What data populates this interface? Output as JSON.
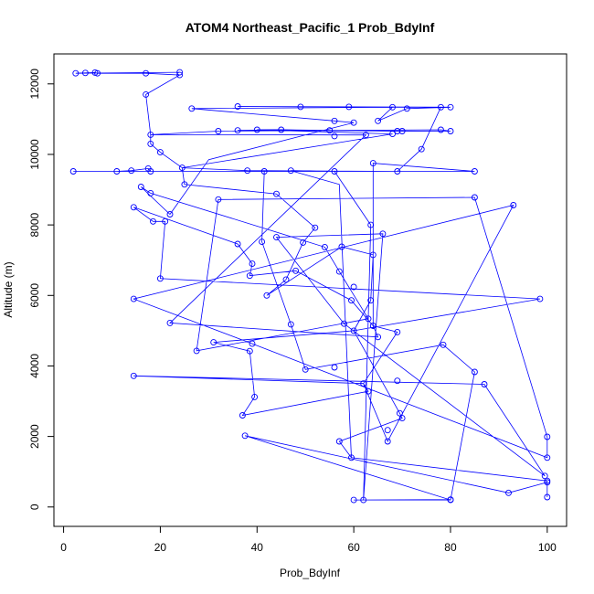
{
  "chart_data": {
    "type": "line",
    "title": "ATOM4 Northeast_Pacific_1 Prob_BdyInf",
    "xlabel": "Prob_BdyInf",
    "ylabel": "Altitude (m)",
    "xlim": [
      -2,
      104
    ],
    "ylim": [
      -550,
      12850
    ],
    "xticks": [
      "0",
      "20",
      "40",
      "60",
      "80",
      "100"
    ],
    "yticks": [
      "0",
      "2000",
      "4000",
      "6000",
      "8000",
      "10000",
      "12000"
    ],
    "series_color": "#0000ff",
    "points": [
      [
        24,
        12330
      ],
      [
        2.5,
        12300
      ],
      [
        4.5,
        12310
      ],
      [
        6.5,
        12320
      ],
      [
        7,
        12300
      ],
      [
        17,
        12300
      ],
      [
        24,
        12250
      ],
      [
        17,
        11700
      ],
      [
        26.5,
        11300
      ],
      [
        56,
        10950
      ],
      [
        60,
        10900
      ],
      [
        68,
        11340
      ],
      [
        65,
        10950
      ],
      [
        71,
        11300
      ],
      [
        80,
        11340
      ],
      [
        36,
        11360
      ],
      [
        49,
        11350
      ],
      [
        59,
        11350
      ],
      [
        78,
        11340
      ],
      [
        18,
        10560
      ],
      [
        68,
        10580
      ],
      [
        62.5,
        10550
      ],
      [
        32,
        10660
      ],
      [
        40,
        10700
      ],
      [
        36,
        10680
      ],
      [
        45,
        10700
      ],
      [
        55,
        10680
      ],
      [
        69,
        10660
      ],
      [
        70,
        10660
      ],
      [
        78,
        10700
      ],
      [
        80,
        10660
      ],
      [
        18,
        10300
      ],
      [
        20,
        10060
      ],
      [
        74,
        10150
      ],
      [
        56,
        10520
      ],
      [
        24.5,
        9620
      ],
      [
        25,
        9150
      ],
      [
        38,
        9540
      ],
      [
        64,
        9750
      ],
      [
        69,
        9520
      ],
      [
        85,
        9520
      ],
      [
        2,
        9520
      ],
      [
        11,
        9520
      ],
      [
        14,
        9540
      ],
      [
        17.5,
        9600
      ],
      [
        18,
        9520
      ],
      [
        41.5,
        9520
      ],
      [
        47,
        9540
      ],
      [
        56,
        9520
      ],
      [
        16,
        9080
      ],
      [
        18,
        8900
      ],
      [
        32,
        8720
      ],
      [
        44,
        8880
      ],
      [
        85,
        8780
      ],
      [
        93,
        8560
      ],
      [
        14.5,
        8500
      ],
      [
        18.5,
        8100
      ],
      [
        22,
        8300
      ],
      [
        21,
        8100
      ],
      [
        63.5,
        8000
      ],
      [
        66,
        7750
      ],
      [
        36,
        7460
      ],
      [
        41,
        7520
      ],
      [
        44,
        7650
      ],
      [
        49.5,
        7500
      ],
      [
        52,
        7920
      ],
      [
        57.5,
        7380
      ],
      [
        54,
        7370
      ],
      [
        64,
        7150
      ],
      [
        39,
        6900
      ],
      [
        38.5,
        6560
      ],
      [
        48,
        6700
      ],
      [
        46,
        6450
      ],
      [
        57,
        6680
      ],
      [
        20,
        6480
      ],
      [
        14.5,
        5900
      ],
      [
        98.5,
        5900
      ],
      [
        42,
        6000
      ],
      [
        60,
        6240
      ],
      [
        63.5,
        5860
      ],
      [
        59.5,
        5860
      ],
      [
        22,
        5220
      ],
      [
        47,
        5180
      ],
      [
        58,
        5200
      ],
      [
        63,
        5340
      ],
      [
        64,
        5140
      ],
      [
        65,
        4820
      ],
      [
        69,
        4960
      ],
      [
        31,
        4670
      ],
      [
        27.5,
        4430
      ],
      [
        39,
        4630
      ],
      [
        78.5,
        4600
      ],
      [
        60,
        5000
      ],
      [
        38.5,
        4420
      ],
      [
        14.5,
        3720
      ],
      [
        50,
        3900
      ],
      [
        56,
        3960
      ],
      [
        62,
        3500
      ],
      [
        85,
        3830
      ],
      [
        87,
        3480
      ],
      [
        69,
        3580
      ],
      [
        63,
        3280
      ],
      [
        39.5,
        3120
      ],
      [
        37,
        2600
      ],
      [
        37.5,
        2020
      ],
      [
        69.5,
        2660
      ],
      [
        70,
        2520
      ],
      [
        67,
        2180
      ],
      [
        57,
        1860
      ],
      [
        59.5,
        1400
      ],
      [
        67,
        1860
      ],
      [
        100,
        1990
      ],
      [
        100,
        1400
      ],
      [
        99.5,
        880
      ],
      [
        92,
        400
      ],
      [
        100,
        740
      ],
      [
        60,
        200
      ],
      [
        62,
        200
      ],
      [
        80,
        200
      ],
      [
        80,
        210
      ],
      [
        100,
        700
      ],
      [
        100,
        280
      ]
    ],
    "path": [
      [
        24,
        12330
      ],
      [
        2.5,
        12300
      ],
      [
        4.5,
        12310
      ],
      [
        6.5,
        12320
      ],
      [
        7,
        12300
      ],
      [
        17,
        12300
      ],
      [
        24,
        12250
      ],
      [
        17,
        11700
      ],
      [
        18,
        10560
      ],
      [
        18,
        10300
      ],
      [
        20,
        10060
      ],
      [
        24.5,
        9620
      ],
      [
        25,
        9150
      ],
      [
        44,
        8880
      ],
      [
        52,
        7920
      ],
      [
        49.5,
        7500
      ],
      [
        46,
        6450
      ],
      [
        42,
        6000
      ],
      [
        57.5,
        7380
      ],
      [
        64,
        7150
      ],
      [
        63.5,
        5860
      ],
      [
        60,
        5000
      ],
      [
        98.5,
        5900
      ],
      [
        20,
        6480
      ],
      [
        21,
        8100
      ],
      [
        18.5,
        8100
      ],
      [
        14.5,
        8500
      ],
      [
        36,
        7460
      ],
      [
        39,
        6900
      ],
      [
        38.5,
        6560
      ],
      [
        48,
        6700
      ],
      [
        59.5,
        5860
      ],
      [
        64,
        5140
      ],
      [
        69,
        4960
      ],
      [
        62,
        3500
      ],
      [
        63,
        3280
      ],
      [
        37,
        2600
      ],
      [
        39.5,
        3120
      ],
      [
        38.5,
        4420
      ],
      [
        31,
        4670
      ],
      [
        60,
        5000
      ],
      [
        69.5,
        2660
      ],
      [
        70,
        2520
      ],
      [
        57,
        1860
      ],
      [
        59.5,
        1400
      ],
      [
        100,
        740
      ],
      [
        100,
        700
      ],
      [
        100,
        280
      ],
      [
        100,
        700
      ],
      [
        92,
        400
      ],
      [
        37.5,
        2020
      ],
      [
        80,
        200
      ],
      [
        80,
        210
      ],
      [
        60,
        200
      ],
      [
        62,
        200
      ],
      [
        80,
        200
      ],
      [
        85,
        3830
      ],
      [
        78.5,
        4600
      ],
      [
        50,
        3900
      ],
      [
        47,
        5180
      ],
      [
        41,
        7520
      ],
      [
        41.5,
        9520
      ],
      [
        2,
        9520
      ],
      [
        11,
        9520
      ],
      [
        14,
        9540
      ],
      [
        17.5,
        9600
      ],
      [
        18,
        9520
      ],
      [
        85,
        9520
      ],
      [
        64,
        9750
      ],
      [
        64,
        5140
      ],
      [
        65,
        4820
      ],
      [
        22,
        5220
      ],
      [
        62.5,
        10550
      ],
      [
        18,
        10560
      ],
      [
        32,
        10660
      ],
      [
        78,
        10700
      ],
      [
        80,
        10660
      ],
      [
        36,
        10680
      ],
      [
        45,
        10700
      ],
      [
        55,
        10680
      ],
      [
        69,
        10660
      ],
      [
        70,
        10660
      ],
      [
        40,
        10700
      ],
      [
        68,
        10580
      ],
      [
        24.5,
        9620
      ],
      [
        38,
        9540
      ],
      [
        69,
        9520
      ],
      [
        74,
        10150
      ],
      [
        78,
        11340
      ],
      [
        36,
        11360
      ],
      [
        49,
        11350
      ],
      [
        59,
        11350
      ],
      [
        80,
        11340
      ],
      [
        71,
        11300
      ],
      [
        65,
        10950
      ],
      [
        68,
        11340
      ],
      [
        26.5,
        11300
      ],
      [
        56,
        10950
      ],
      [
        60,
        10900
      ],
      [
        30,
        9850
      ],
      [
        22,
        8300
      ],
      [
        16,
        9080
      ],
      [
        18,
        8900
      ],
      [
        54,
        7370
      ],
      [
        57,
        6680
      ],
      [
        63,
        5340
      ],
      [
        27.5,
        4430
      ],
      [
        32,
        8720
      ],
      [
        85,
        8780
      ],
      [
        100,
        1990
      ],
      [
        100,
        1400
      ],
      [
        39,
        4630
      ],
      [
        14.5,
        5900
      ],
      [
        93,
        8560
      ],
      [
        67,
        1860
      ],
      [
        62,
        3500
      ],
      [
        14.5,
        3720
      ],
      [
        87,
        3480
      ],
      [
        99.5,
        880
      ],
      [
        58,
        5200
      ],
      [
        44,
        7650
      ],
      [
        66,
        7750
      ],
      [
        62,
        200
      ],
      [
        63.5,
        8000
      ],
      [
        56,
        9520
      ],
      [
        47,
        9540
      ],
      [
        57,
        9150
      ],
      [
        59.5,
        1400
      ]
    ]
  }
}
